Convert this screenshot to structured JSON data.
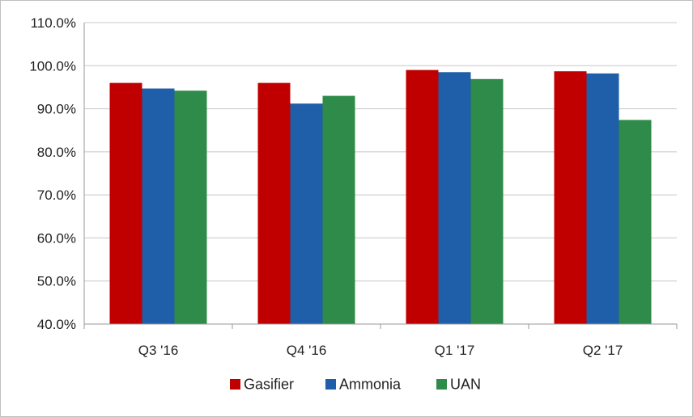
{
  "chart_data": {
    "type": "bar",
    "title": "",
    "xlabel": "",
    "ylabel": "",
    "categories": [
      "Q3 '16",
      "Q4 '16",
      "Q1 '17",
      "Q2 '17"
    ],
    "series": [
      {
        "name": "Gasifier",
        "color": "#c00000",
        "values": [
          96.0,
          96.0,
          99.0,
          98.7
        ]
      },
      {
        "name": "Ammonia",
        "color": "#1f5ea8",
        "values": [
          94.7,
          91.2,
          98.5,
          98.2
        ]
      },
      {
        "name": "UAN",
        "color": "#2e8b4a",
        "values": [
          94.2,
          93.0,
          96.9,
          87.4
        ]
      }
    ],
    "ylim": [
      40,
      110
    ],
    "yticks": [
      40,
      50,
      60,
      70,
      80,
      90,
      100,
      110
    ],
    "ytick_labels": [
      "40.0%",
      "50.0%",
      "60.0%",
      "70.0%",
      "80.0%",
      "90.0%",
      "100.0%",
      "110.0%"
    ],
    "grid": true,
    "legend_position": "bottom"
  }
}
